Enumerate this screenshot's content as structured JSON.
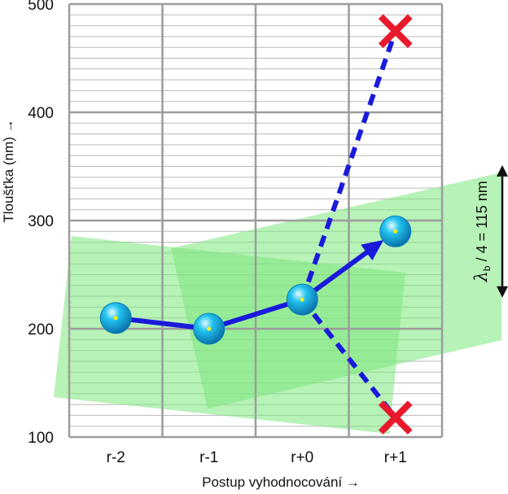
{
  "chart_data": {
    "type": "line",
    "categories": [
      "r-2",
      "r-1",
      "r+0",
      "r+1"
    ],
    "x_ticks": [
      "r-2",
      "r-1",
      "r+0",
      "r+1"
    ],
    "y_ticks": [
      100,
      200,
      300,
      400,
      500
    ],
    "ylim": [
      100,
      500
    ],
    "xlabel": "Postup vyhodnocování →",
    "ylabel": "Tloušťka (nm) →",
    "grid": true,
    "series": [
      {
        "values": [
          210,
          200,
          227,
          290
        ],
        "color": "#1a1adc",
        "style": "solid",
        "marker": "sphere",
        "marker_color": "#22c4f0"
      }
    ],
    "rejected": [
      {
        "from_x": "r+0",
        "from_y": 227,
        "to_x": "r+1",
        "to_y": 475,
        "marker": "x",
        "marker_color": "#e8192c"
      },
      {
        "from_x": "r+0",
        "from_y": 227,
        "to_x": "r+1",
        "to_y": 118,
        "marker": "x",
        "marker_color": "#e8192c"
      }
    ],
    "tolerance_annotation": {
      "symbol": "λ",
      "subscript": "b",
      "rest": " / 4 = 115 nm",
      "span": 115,
      "center_y": 290
    },
    "tolerance_band_color": "#7ce87c"
  }
}
